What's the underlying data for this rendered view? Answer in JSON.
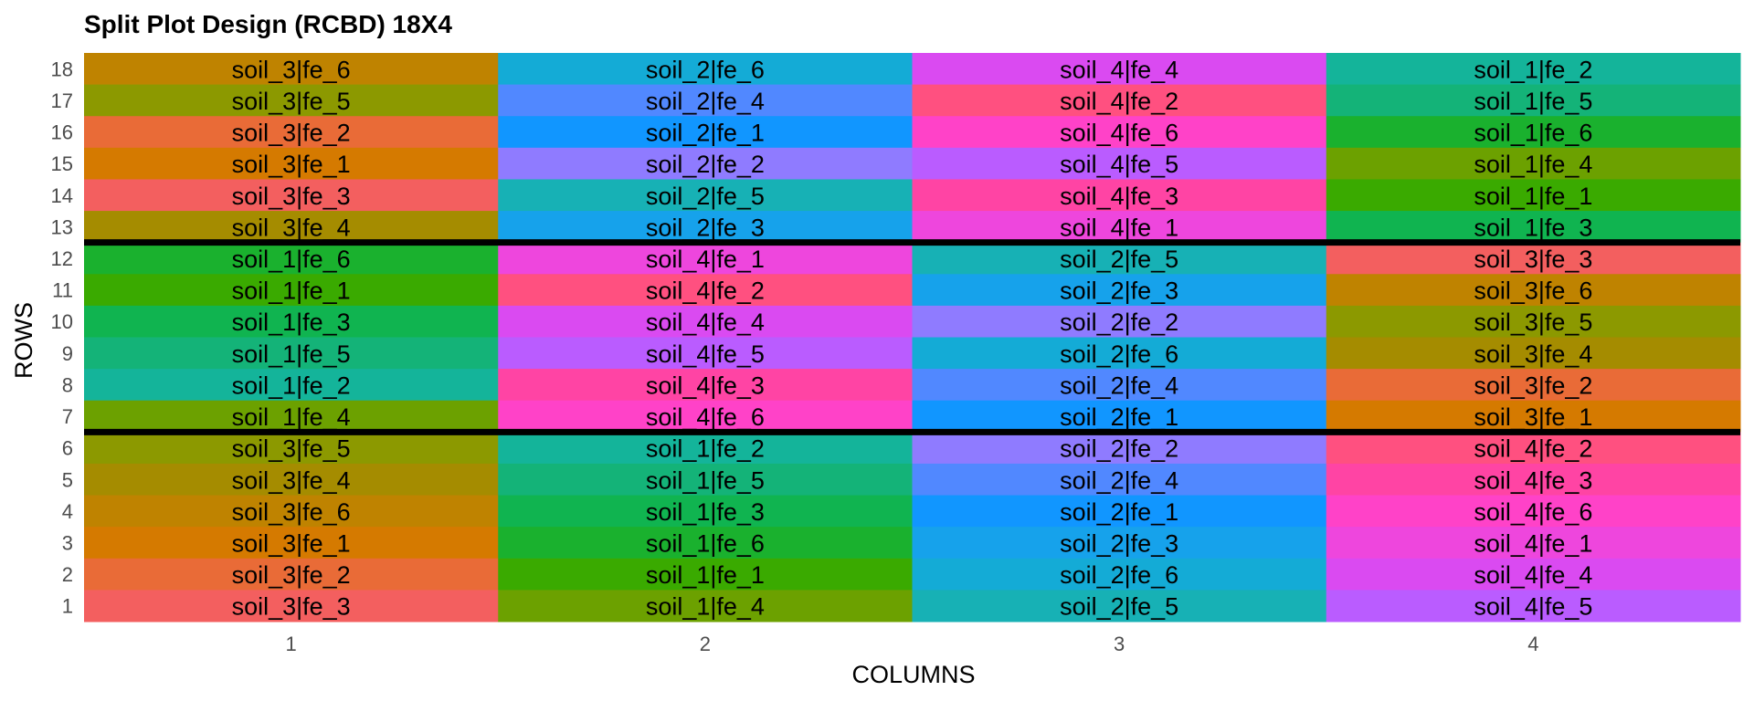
{
  "chart_data": {
    "type": "heatmap",
    "title": "Split Plot Design (RCBD) 18X4",
    "xlabel": "COLUMNS",
    "ylabel": "ROWS",
    "x_ticks": [
      "1",
      "2",
      "3",
      "4"
    ],
    "y_ticks": [
      "1",
      "2",
      "3",
      "4",
      "5",
      "6",
      "7",
      "8",
      "9",
      "10",
      "11",
      "12",
      "13",
      "14",
      "15",
      "16",
      "17",
      "18"
    ],
    "block_separators_after_row": [
      6,
      12
    ],
    "grid": false,
    "legend": "none",
    "colors": {
      "soil_1|fe_1": "#3AAA00",
      "soil_1|fe_2": "#14B49A",
      "soil_1|fe_3": "#10B450",
      "soil_1|fe_4": "#6CA100",
      "soil_1|fe_5": "#14B378",
      "soil_1|fe_6": "#1AB12E",
      "soil_2|fe_1": "#1196FF",
      "soil_2|fe_2": "#8F7BFF",
      "soil_2|fe_3": "#16A2EB",
      "soil_2|fe_4": "#5188FF",
      "soil_2|fe_5": "#17B1B5",
      "soil_2|fe_6": "#14ABD6",
      "soil_3|fe_1": "#D57A00",
      "soil_3|fe_2": "#E96B37",
      "soil_3|fe_3": "#F35F5F",
      "soil_3|fe_4": "#A58C00",
      "soil_3|fe_5": "#8C9900",
      "soil_3|fe_6": "#BF8300",
      "soil_4|fe_1": "#EE46DD",
      "soil_4|fe_2": "#FF5080",
      "soil_4|fe_3": "#FF44A4",
      "soil_4|fe_4": "#DA4AF1",
      "soil_4|fe_5": "#BA5CFF",
      "soil_4|fe_6": "#FF42C8"
    },
    "cells": [
      {
        "row": 18,
        "col": 1,
        "label": "soil_3|fe_6"
      },
      {
        "row": 18,
        "col": 2,
        "label": "soil_2|fe_6"
      },
      {
        "row": 18,
        "col": 3,
        "label": "soil_4|fe_4"
      },
      {
        "row": 18,
        "col": 4,
        "label": "soil_1|fe_2"
      },
      {
        "row": 17,
        "col": 1,
        "label": "soil_3|fe_5"
      },
      {
        "row": 17,
        "col": 2,
        "label": "soil_2|fe_4"
      },
      {
        "row": 17,
        "col": 3,
        "label": "soil_4|fe_2"
      },
      {
        "row": 17,
        "col": 4,
        "label": "soil_1|fe_5"
      },
      {
        "row": 16,
        "col": 1,
        "label": "soil_3|fe_2"
      },
      {
        "row": 16,
        "col": 2,
        "label": "soil_2|fe_1"
      },
      {
        "row": 16,
        "col": 3,
        "label": "soil_4|fe_6"
      },
      {
        "row": 16,
        "col": 4,
        "label": "soil_1|fe_6"
      },
      {
        "row": 15,
        "col": 1,
        "label": "soil_3|fe_1"
      },
      {
        "row": 15,
        "col": 2,
        "label": "soil_2|fe_2"
      },
      {
        "row": 15,
        "col": 3,
        "label": "soil_4|fe_5"
      },
      {
        "row": 15,
        "col": 4,
        "label": "soil_1|fe_4"
      },
      {
        "row": 14,
        "col": 1,
        "label": "soil_3|fe_3"
      },
      {
        "row": 14,
        "col": 2,
        "label": "soil_2|fe_5"
      },
      {
        "row": 14,
        "col": 3,
        "label": "soil_4|fe_3"
      },
      {
        "row": 14,
        "col": 4,
        "label": "soil_1|fe_1"
      },
      {
        "row": 13,
        "col": 1,
        "label": "soil_3|fe_4"
      },
      {
        "row": 13,
        "col": 2,
        "label": "soil_2|fe_3"
      },
      {
        "row": 13,
        "col": 3,
        "label": "soil_4|fe_1"
      },
      {
        "row": 13,
        "col": 4,
        "label": "soil_1|fe_3"
      },
      {
        "row": 12,
        "col": 1,
        "label": "soil_1|fe_6"
      },
      {
        "row": 12,
        "col": 2,
        "label": "soil_4|fe_1"
      },
      {
        "row": 12,
        "col": 3,
        "label": "soil_2|fe_5"
      },
      {
        "row": 12,
        "col": 4,
        "label": "soil_3|fe_3"
      },
      {
        "row": 11,
        "col": 1,
        "label": "soil_1|fe_1"
      },
      {
        "row": 11,
        "col": 2,
        "label": "soil_4|fe_2"
      },
      {
        "row": 11,
        "col": 3,
        "label": "soil_2|fe_3"
      },
      {
        "row": 11,
        "col": 4,
        "label": "soil_3|fe_6"
      },
      {
        "row": 10,
        "col": 1,
        "label": "soil_1|fe_3"
      },
      {
        "row": 10,
        "col": 2,
        "label": "soil_4|fe_4"
      },
      {
        "row": 10,
        "col": 3,
        "label": "soil_2|fe_2"
      },
      {
        "row": 10,
        "col": 4,
        "label": "soil_3|fe_5"
      },
      {
        "row": 9,
        "col": 1,
        "label": "soil_1|fe_5"
      },
      {
        "row": 9,
        "col": 2,
        "label": "soil_4|fe_5"
      },
      {
        "row": 9,
        "col": 3,
        "label": "soil_2|fe_6"
      },
      {
        "row": 9,
        "col": 4,
        "label": "soil_3|fe_4"
      },
      {
        "row": 8,
        "col": 1,
        "label": "soil_1|fe_2"
      },
      {
        "row": 8,
        "col": 2,
        "label": "soil_4|fe_3"
      },
      {
        "row": 8,
        "col": 3,
        "label": "soil_2|fe_4"
      },
      {
        "row": 8,
        "col": 4,
        "label": "soil_3|fe_2"
      },
      {
        "row": 7,
        "col": 1,
        "label": "soil_1|fe_4"
      },
      {
        "row": 7,
        "col": 2,
        "label": "soil_4|fe_6"
      },
      {
        "row": 7,
        "col": 3,
        "label": "soil_2|fe_1"
      },
      {
        "row": 7,
        "col": 4,
        "label": "soil_3|fe_1"
      },
      {
        "row": 6,
        "col": 1,
        "label": "soil_3|fe_5"
      },
      {
        "row": 6,
        "col": 2,
        "label": "soil_1|fe_2"
      },
      {
        "row": 6,
        "col": 3,
        "label": "soil_2|fe_2"
      },
      {
        "row": 6,
        "col": 4,
        "label": "soil_4|fe_2"
      },
      {
        "row": 5,
        "col": 1,
        "label": "soil_3|fe_4"
      },
      {
        "row": 5,
        "col": 2,
        "label": "soil_1|fe_5"
      },
      {
        "row": 5,
        "col": 3,
        "label": "soil_2|fe_4"
      },
      {
        "row": 5,
        "col": 4,
        "label": "soil_4|fe_3"
      },
      {
        "row": 4,
        "col": 1,
        "label": "soil_3|fe_6"
      },
      {
        "row": 4,
        "col": 2,
        "label": "soil_1|fe_3"
      },
      {
        "row": 4,
        "col": 3,
        "label": "soil_2|fe_1"
      },
      {
        "row": 4,
        "col": 4,
        "label": "soil_4|fe_6"
      },
      {
        "row": 3,
        "col": 1,
        "label": "soil_3|fe_1"
      },
      {
        "row": 3,
        "col": 2,
        "label": "soil_1|fe_6"
      },
      {
        "row": 3,
        "col": 3,
        "label": "soil_2|fe_3"
      },
      {
        "row": 3,
        "col": 4,
        "label": "soil_4|fe_1"
      },
      {
        "row": 2,
        "col": 1,
        "label": "soil_3|fe_2"
      },
      {
        "row": 2,
        "col": 2,
        "label": "soil_1|fe_1"
      },
      {
        "row": 2,
        "col": 3,
        "label": "soil_2|fe_6"
      },
      {
        "row": 2,
        "col": 4,
        "label": "soil_4|fe_4"
      },
      {
        "row": 1,
        "col": 1,
        "label": "soil_3|fe_3"
      },
      {
        "row": 1,
        "col": 2,
        "label": "soil_1|fe_4"
      },
      {
        "row": 1,
        "col": 3,
        "label": "soil_2|fe_5"
      },
      {
        "row": 1,
        "col": 4,
        "label": "soil_4|fe_5"
      }
    ]
  }
}
